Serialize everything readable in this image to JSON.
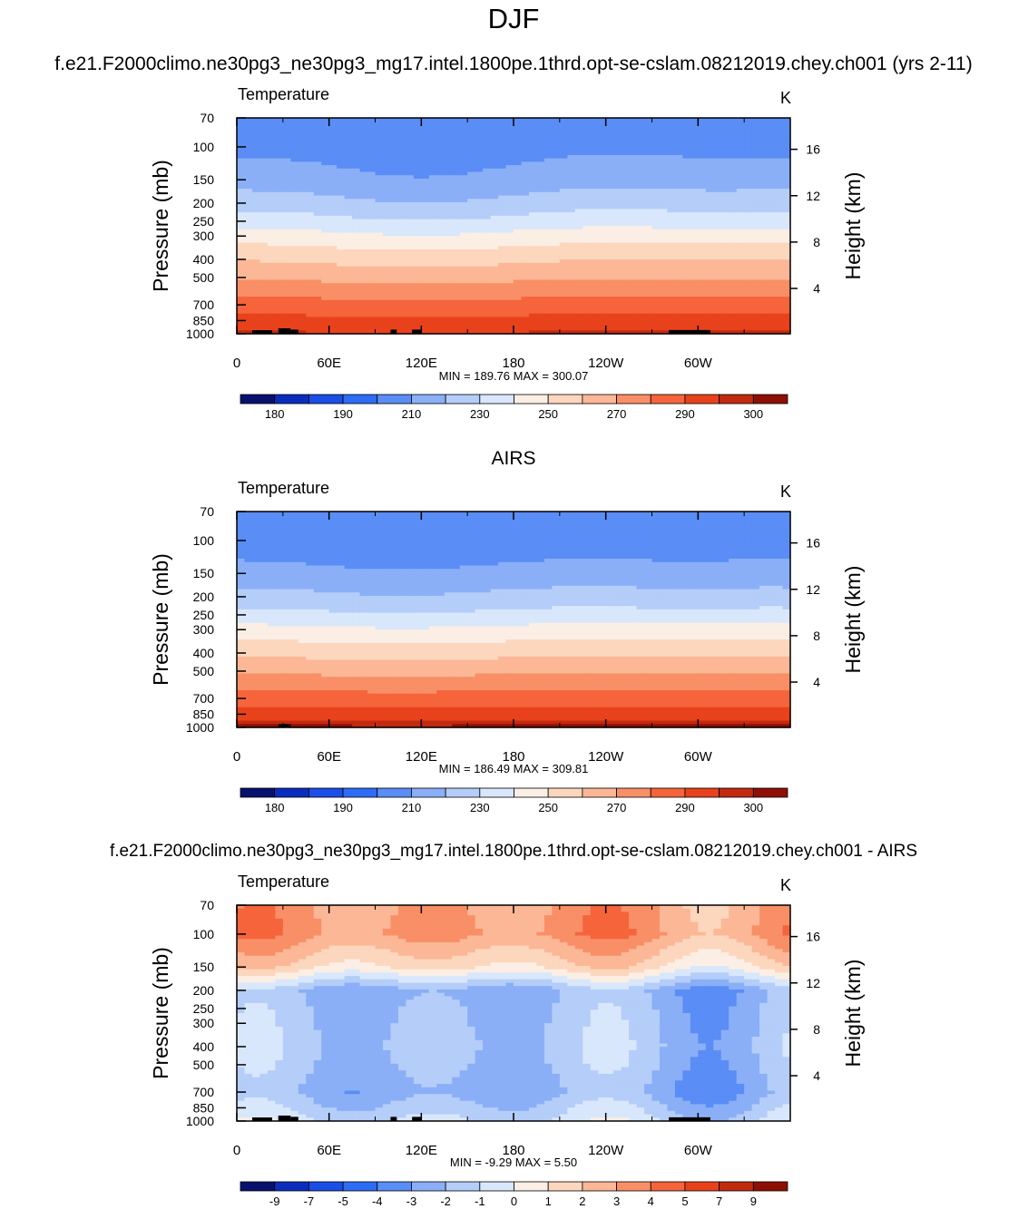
{
  "page": {
    "title": "DJF",
    "case_name": "f.e21.F2000climo.ne30pg3_ne30pg3_mg17.intel.1800pe.1thrd.opt-se-cslam.08212019.chey.ch001 (yrs 2-11)"
  },
  "colors": {
    "abs_levels": [
      "#08126e",
      "#0b2dbe",
      "#1a4ee6",
      "#2d6cf5",
      "#5a8df5",
      "#8aaff7",
      "#b4cdf9",
      "#d8e7fb",
      "#fbeee4",
      "#fcd6bd",
      "#fbb796",
      "#f98f66",
      "#f5643b",
      "#e8421c",
      "#c22a10",
      "#8e1005"
    ],
    "diff_levels": [
      "#08126e",
      "#0b2dbe",
      "#1a4ee6",
      "#2d6cf5",
      "#5a8df5",
      "#8aaff7",
      "#b4cdf9",
      "#d8e7fb",
      "#fbeee4",
      "#fcd6bd",
      "#fbb796",
      "#f98f66",
      "#f5643b",
      "#e8421c",
      "#c22a10",
      "#8e1005"
    ],
    "topography": "#000000"
  },
  "chart_data": [
    {
      "type": "heatmap",
      "title": "",
      "variable_label": "Temperature",
      "units_label": "K",
      "ylabel": "Pressure (mb)",
      "ylabel_right": "Height (km)",
      "xticks": [
        "0",
        "60E",
        "120E",
        "180",
        "120W",
        "60W"
      ],
      "xlim": [
        0,
        360
      ],
      "pressure_ticks": [
        "70",
        "100",
        "150",
        "200",
        "250",
        "300",
        "400",
        "500",
        "700",
        "850",
        "1000"
      ],
      "pressure_values": [
        70,
        100,
        150,
        200,
        250,
        300,
        400,
        500,
        700,
        850,
        1000
      ],
      "height_ticks": [
        "16",
        "12",
        "8",
        "4"
      ],
      "height_values": [
        16,
        12,
        8,
        4
      ],
      "stats": "MIN = 189.76  MAX = 300.07",
      "colorbar_labels": [
        "180",
        "190",
        "210",
        "230",
        "250",
        "270",
        "290",
        "300"
      ],
      "kind": "model",
      "profile": [
        [
          70,
          194.5
        ],
        [
          100,
          196.5
        ],
        [
          150,
          204
        ],
        [
          200,
          214
        ],
        [
          250,
          224
        ],
        [
          300,
          234
        ],
        [
          400,
          248
        ],
        [
          500,
          258
        ],
        [
          700,
          274
        ],
        [
          850,
          283
        ],
        [
          1000,
          291
        ]
      ],
      "waves": [
        {
          "amp": 2.8,
          "k": 1,
          "phase": 2.7
        },
        {
          "amp": 1.2,
          "k": 2,
          "phase": 0.4
        }
      ]
    },
    {
      "type": "heatmap",
      "title": "AIRS",
      "variable_label": "Temperature",
      "units_label": "K",
      "ylabel": "Pressure (mb)",
      "ylabel_right": "Height (km)",
      "xticks": [
        "0",
        "60E",
        "120E",
        "180",
        "120W",
        "60W"
      ],
      "xlim": [
        0,
        360
      ],
      "pressure_ticks": [
        "70",
        "100",
        "150",
        "200",
        "250",
        "300",
        "400",
        "500",
        "700",
        "850",
        "1000"
      ],
      "pressure_values": [
        70,
        100,
        150,
        200,
        250,
        300,
        400,
        500,
        700,
        850,
        1000
      ],
      "height_ticks": [
        "16",
        "12",
        "8",
        "4"
      ],
      "height_values": [
        16,
        12,
        8,
        4
      ],
      "stats": "MIN = 186.49  MAX = 309.81",
      "colorbar_labels": [
        "180",
        "190",
        "210",
        "230",
        "250",
        "270",
        "290",
        "300"
      ],
      "kind": "obs",
      "profile": [
        [
          70,
          194.5
        ],
        [
          100,
          193.5
        ],
        [
          150,
          203
        ],
        [
          200,
          213
        ],
        [
          250,
          223
        ],
        [
          300,
          233
        ],
        [
          400,
          247
        ],
        [
          500,
          258
        ],
        [
          700,
          275
        ],
        [
          850,
          285
        ],
        [
          1000,
          297
        ]
      ],
      "waves": [
        {
          "amp": 1.6,
          "k": 1,
          "phase": 2.9
        },
        {
          "amp": 0.8,
          "k": 2,
          "phase": 0.9
        }
      ]
    },
    {
      "type": "heatmap",
      "title": "f.e21.F2000climo.ne30pg3_ne30pg3_mg17.intel.1800pe.1thrd.opt-se-cslam.08212019.chey.ch001 - AIRS",
      "variable_label": "Temperature",
      "units_label": "K",
      "ylabel": "Pressure (mb)",
      "ylabel_right": "Height (km)",
      "xticks": [
        "0",
        "60E",
        "120E",
        "180",
        "120W",
        "60W"
      ],
      "xlim": [
        0,
        360
      ],
      "pressure_ticks": [
        "70",
        "100",
        "150",
        "200",
        "250",
        "300",
        "400",
        "500",
        "700",
        "850",
        "1000"
      ],
      "pressure_values": [
        70,
        100,
        150,
        200,
        250,
        300,
        400,
        500,
        700,
        850,
        1000
      ],
      "height_ticks": [
        "16",
        "12",
        "8",
        "4"
      ],
      "height_values": [
        16,
        12,
        8,
        4
      ],
      "stats": "MIN =  -9.29  MAX =   5.50",
      "colorbar_labels": [
        "-9",
        "-7",
        "-5",
        "-4",
        "-3",
        "-2",
        "-1",
        "0",
        "1",
        "2",
        "3",
        "4",
        "5",
        "7",
        "9"
      ],
      "kind": "diff",
      "profile": [
        [
          70,
          3.0
        ],
        [
          100,
          3.3
        ],
        [
          150,
          1.2
        ],
        [
          200,
          -2.3
        ],
        [
          250,
          -2.0
        ],
        [
          300,
          -1.9
        ],
        [
          400,
          -1.7
        ],
        [
          500,
          -1.9
        ],
        [
          700,
          -2.4
        ],
        [
          850,
          -1.6
        ],
        [
          1000,
          -0.8
        ]
      ],
      "waves": [
        {
          "amp": 0.8,
          "k": 3,
          "phase": 1.2
        },
        {
          "amp": 0.5,
          "k": 2,
          "phase": 0.3
        }
      ]
    }
  ]
}
